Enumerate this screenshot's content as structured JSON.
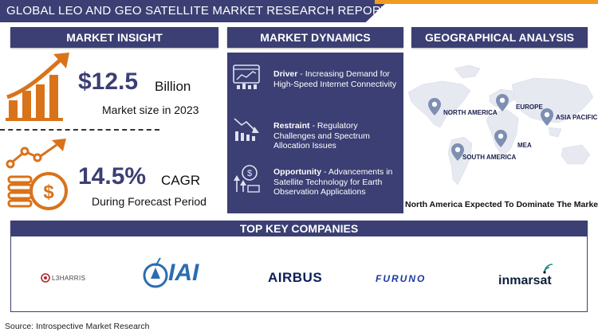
{
  "title": "GLOBAL LEO AND GEO SATELLITE MARKET RESEARCH REPORT",
  "sections": {
    "market_insight": "MARKET INSIGHT",
    "market_dynamics": "MARKET DYNAMICS",
    "geo_analysis": "GEOGRAPHICAL ANALYSIS",
    "top_companies": "TOP KEY COMPANIES"
  },
  "insight": {
    "market_size_value": "$12.5",
    "market_size_unit": "Billion",
    "market_size_caption": "Market size in 2023",
    "cagr_value": "14.5%",
    "cagr_unit": "CAGR",
    "cagr_caption": "During Forecast Period"
  },
  "dynamics": {
    "driver_label": "Driver",
    "driver_text": "- Increasing Demand for High-Speed Internet Connectivity",
    "restraint_label": "Restraint",
    "restraint_text": "- Regulatory Challenges and Spectrum Allocation Issues",
    "opportunity_label": "Opportunity",
    "opportunity_text": "- Advancements in Satellite Technology for Earth Observation Applications"
  },
  "geo": {
    "regions": [
      "NORTH AMERICA",
      "EUROPE",
      "ASIA PACIFIC",
      "MEA",
      "SOUTH AMERICA"
    ],
    "caption": "North America Expected To Dominate The Market"
  },
  "companies": {
    "l3harris": "L3HARRIS",
    "iai": "IAI",
    "airbus": "AIRBUS",
    "furuno": "FURUNO",
    "inmarsat": "inmarsat"
  },
  "source": "Source: Introspective Market Research",
  "colors": {
    "navy": "#3b3f73",
    "orange": "#d9731a",
    "accent": "#f29c1f"
  }
}
